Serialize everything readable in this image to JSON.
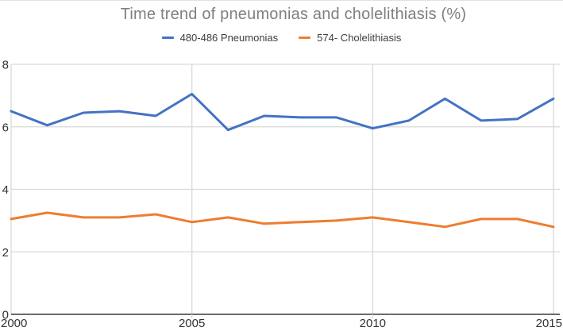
{
  "figure": {
    "title": "Time trend of pneumonias and cholelithiasis (%)"
  },
  "colors": {
    "pneumonias_line": "#4472C4",
    "cholelithiasis_line": "#ED7D31",
    "gridline": "#D9D9D9",
    "axis_line": "#3a3a3a",
    "title_text": "#7f7f7f",
    "tick_text": "#333333"
  },
  "chart_data": {
    "type": "line",
    "title": "Time trend of pneumonias and cholelithiasis (%)",
    "x": [
      2000,
      2001,
      2002,
      2003,
      2004,
      2005,
      2006,
      2007,
      2008,
      2009,
      2010,
      2011,
      2012,
      2013,
      2014,
      2015
    ],
    "series": [
      {
        "name": "480-486 Pneumonias",
        "color": "#4472C4",
        "values": [
          6.5,
          6.05,
          6.45,
          6.5,
          6.35,
          7.05,
          5.9,
          6.35,
          6.3,
          6.3,
          5.95,
          6.2,
          6.9,
          6.2,
          6.25,
          6.9
        ]
      },
      {
        "name": "574- Cholelithiasis",
        "color": "#ED7D31",
        "values": [
          3.05,
          3.25,
          3.1,
          3.1,
          3.2,
          2.95,
          3.1,
          2.9,
          2.95,
          3.0,
          3.1,
          2.95,
          2.8,
          3.05,
          3.05,
          2.8
        ]
      }
    ],
    "ylim": [
      0,
      8
    ],
    "yticks": [
      0,
      2,
      4,
      6,
      8
    ],
    "xticks": [
      2000,
      2005,
      2010,
      2015
    ],
    "grid": true,
    "legend_position": "top"
  }
}
